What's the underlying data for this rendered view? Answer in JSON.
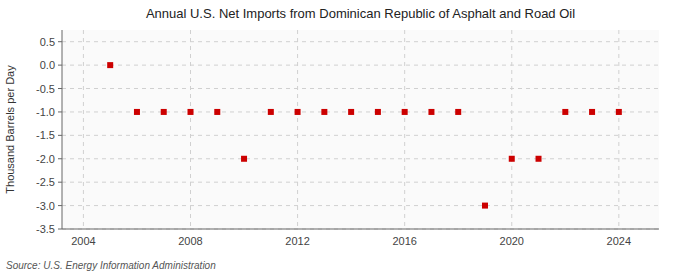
{
  "chart_data": {
    "type": "scatter",
    "title": "Annual U.S. Net Imports from Dominican Republic of Asphalt and Road Oil",
    "ylabel": "Thousand Barrels per Day",
    "annotations": [
      "Source: U.S. Energy Information Administration"
    ],
    "x": [
      2005,
      2006,
      2007,
      2008,
      2009,
      2010,
      2011,
      2012,
      2013,
      2014,
      2015,
      2016,
      2017,
      2018,
      2019,
      2020,
      2021,
      2022,
      2023,
      2024
    ],
    "values": [
      0.0,
      -1.0,
      -1.0,
      -1.0,
      -1.0,
      -2.0,
      -1.0,
      -1.0,
      -1.0,
      -1.0,
      -1.0,
      -1.0,
      -1.0,
      -1.0,
      -3.0,
      -2.0,
      -2.0,
      -1.0,
      -1.0,
      -1.0
    ],
    "color": "#cc0000",
    "marker": "square",
    "xlim": [
      2003.2,
      2025.5
    ],
    "ylim": [
      -3.5,
      0.75
    ],
    "xticks": [
      2004,
      2008,
      2012,
      2016,
      2020,
      2024
    ],
    "yticks": [
      0.5,
      {
        "value": 0,
        "label": "0.0"
      },
      -0.5,
      {
        "value": -1,
        "label": "-1.0"
      },
      -1.5,
      {
        "value": -2,
        "label": "-2.0"
      },
      -2.5,
      {
        "value": -3,
        "label": "-3.0"
      },
      -3.5
    ],
    "grid": true
  }
}
